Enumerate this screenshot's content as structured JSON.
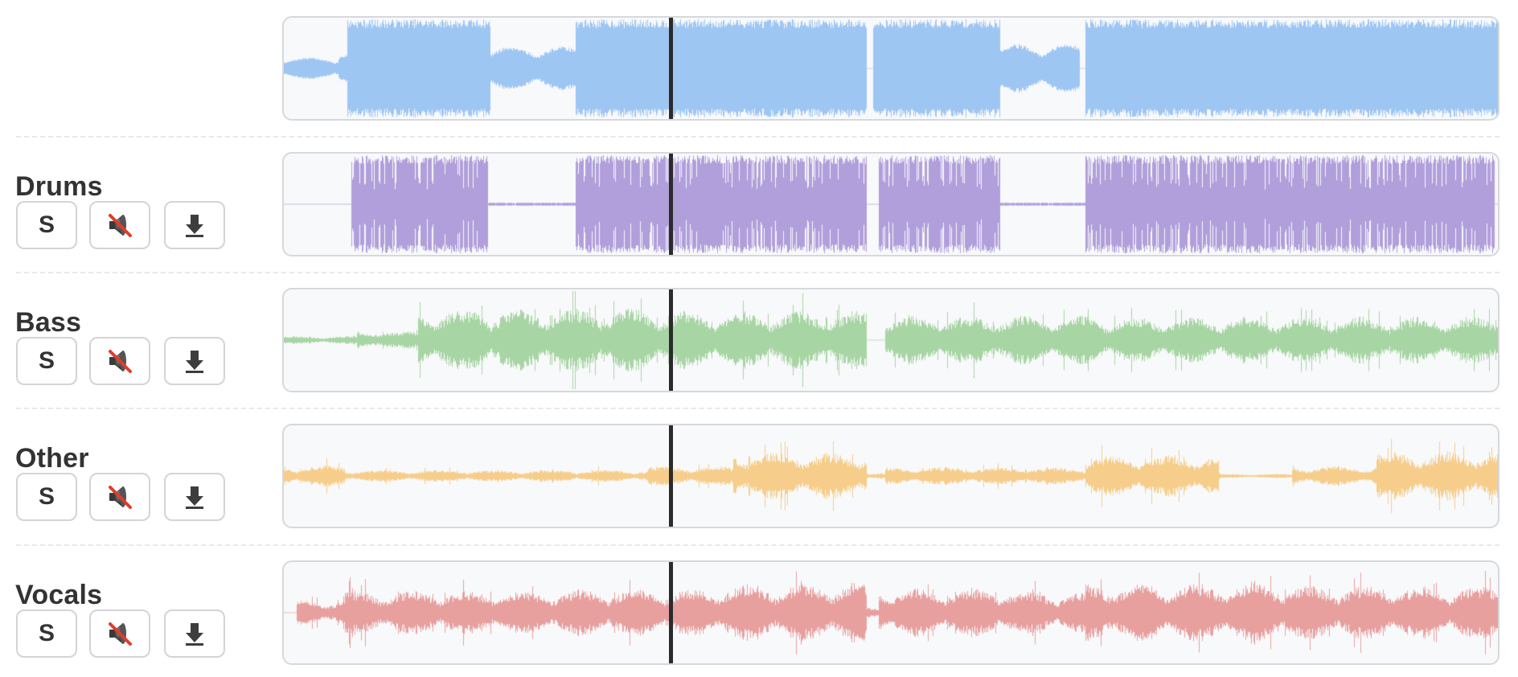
{
  "mixer": {
    "playhead_fraction": 0.317,
    "master": {
      "color": "#9ec6f3",
      "style": "master",
      "seed": 7
    },
    "tracks": [
      {
        "label": "Drums",
        "color": "#b19fdb",
        "style": "drums",
        "seed": 11,
        "solo_label": "S",
        "mute_icon": "speaker-muted-icon",
        "download_icon": "download-arrow-icon"
      },
      {
        "label": "Bass",
        "color": "#a8d5a4",
        "style": "bass",
        "seed": 23,
        "solo_label": "S",
        "mute_icon": "speaker-muted-icon",
        "download_icon": "download-arrow-icon"
      },
      {
        "label": "Other",
        "color": "#f6cd8a",
        "style": "other",
        "seed": 37,
        "solo_label": "S",
        "mute_icon": "speaker-muted-icon",
        "download_icon": "download-arrow-icon"
      },
      {
        "label": "Vocals",
        "color": "#e8a09f",
        "style": "vocals",
        "seed": 51,
        "solo_label": "S",
        "mute_icon": "speaker-muted-icon",
        "download_icon": "download-arrow-icon"
      }
    ]
  }
}
